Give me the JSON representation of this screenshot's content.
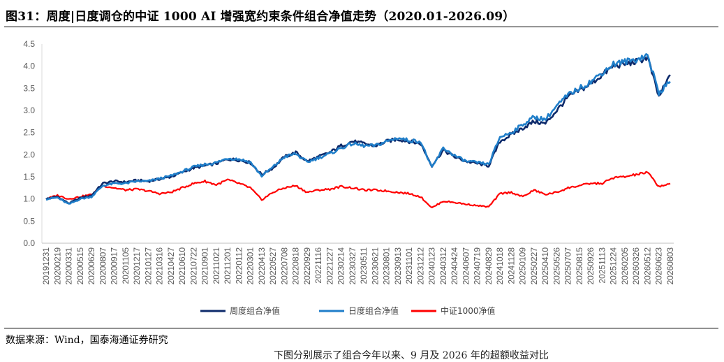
{
  "title": "图31：周度|日度调仓的中证 1000 AI 增强宽约束条件组合净值走势（2020.01-2026.09）",
  "source": "数据来源：Wind，国泰海通证券研究",
  "footer_cut_text": "下图分别展示了组合今年以来、9 月及 2026 年的超额收益对比",
  "chart_data": {
    "type": "line",
    "title": "",
    "xlabel": "",
    "ylabel": "",
    "ylim": [
      0,
      4.5
    ],
    "yticks": [
      "0.0",
      "0.5",
      "1.0",
      "1.5",
      "2.0",
      "2.5",
      "3.0",
      "3.5",
      "4.0",
      "4.5"
    ],
    "grid": false,
    "legend_position": "bottom",
    "x_tick_labels": [
      "20191231",
      "20200219",
      "20200331",
      "20200515",
      "20200629",
      "20200807",
      "20200917",
      "20201105",
      "20201217",
      "20210127",
      "20210316",
      "20210427",
      "20210610",
      "20210722",
      "20210901",
      "20211021",
      "20211201",
      "20220112",
      "20220301",
      "20220413",
      "20220527",
      "20220708",
      "20220818",
      "20220929",
      "20221116",
      "20221227",
      "20230214",
      "20230327",
      "20230511",
      "20230621",
      "20230801",
      "20230913",
      "20231101",
      "20231212",
      "20240123",
      "20240312",
      "20240424",
      "20240607",
      "20240719",
      "20240829",
      "20241018",
      "20241128",
      "20250109",
      "20250227",
      "20250410",
      "20250526",
      "20250707",
      "20250815",
      "20250926",
      "20251113",
      "20251224",
      "20260205",
      "20260326",
      "20260512",
      "20260623",
      "20260803"
    ],
    "series": [
      {
        "name": "周度组合净值",
        "color": "#0d2a6b",
        "values": [
          1.0,
          1.05,
          0.9,
          1.02,
          1.08,
          1.35,
          1.4,
          1.38,
          1.42,
          1.4,
          1.45,
          1.5,
          1.6,
          1.7,
          1.75,
          1.8,
          1.9,
          1.88,
          1.82,
          1.55,
          1.7,
          1.95,
          2.05,
          1.85,
          1.95,
          2.05,
          2.2,
          2.3,
          2.25,
          2.2,
          2.3,
          2.35,
          2.3,
          2.25,
          1.75,
          2.1,
          1.95,
          1.85,
          1.8,
          1.75,
          2.3,
          2.45,
          2.6,
          2.75,
          2.7,
          3.0,
          3.3,
          3.45,
          3.6,
          3.8,
          4.0,
          4.05,
          4.1,
          4.2,
          3.3,
          3.8
        ]
      },
      {
        "name": "日度组合净值",
        "color": "#1f7ec9",
        "values": [
          1.0,
          1.03,
          0.88,
          1.0,
          1.05,
          1.3,
          1.35,
          1.35,
          1.4,
          1.4,
          1.46,
          1.52,
          1.62,
          1.72,
          1.78,
          1.82,
          1.92,
          1.9,
          1.83,
          1.52,
          1.72,
          1.95,
          2.02,
          1.83,
          1.93,
          2.02,
          2.15,
          2.25,
          2.2,
          2.2,
          2.3,
          2.38,
          2.32,
          2.3,
          1.7,
          2.15,
          1.98,
          1.85,
          1.82,
          1.78,
          2.4,
          2.5,
          2.68,
          2.85,
          2.8,
          3.1,
          3.35,
          3.5,
          3.65,
          3.85,
          4.05,
          4.1,
          4.15,
          4.25,
          3.4,
          3.65
        ]
      },
      {
        "name": "中证1000净值",
        "color": "#ff0000",
        "values": [
          1.0,
          1.08,
          1.0,
          1.05,
          1.1,
          1.3,
          1.25,
          1.2,
          1.22,
          1.18,
          1.12,
          1.15,
          1.25,
          1.35,
          1.4,
          1.32,
          1.43,
          1.35,
          1.25,
          0.98,
          1.15,
          1.25,
          1.3,
          1.15,
          1.2,
          1.22,
          1.28,
          1.25,
          1.2,
          1.2,
          1.18,
          1.15,
          1.12,
          1.05,
          0.8,
          0.95,
          0.92,
          0.88,
          0.85,
          0.82,
          1.12,
          1.15,
          1.05,
          1.2,
          1.1,
          1.15,
          1.25,
          1.3,
          1.35,
          1.35,
          1.48,
          1.5,
          1.55,
          1.6,
          1.28,
          1.35
        ]
      }
    ]
  }
}
